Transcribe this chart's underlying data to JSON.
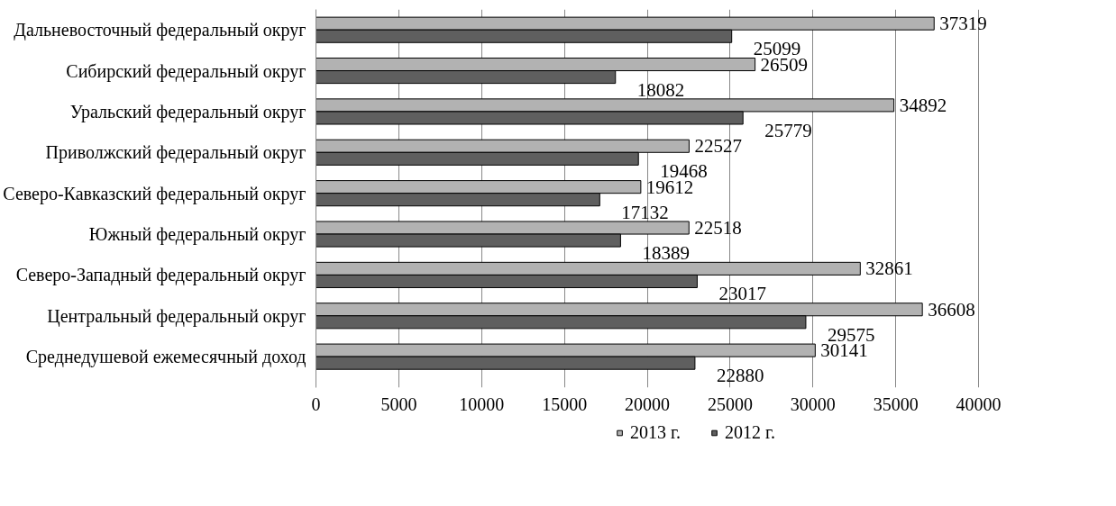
{
  "chart_data": {
    "type": "bar",
    "orientation": "horizontal",
    "categories": [
      "Дальневосточный федеральный округ",
      "Сибирский федеральный округ",
      "Уральский федеральный округ",
      "Приволжский федеральный округ",
      "Северо-Кавказский федеральный округ",
      "Южный федеральный округ",
      "Северо-Западный федеральный округ",
      "Центральный федеральный округ",
      "Среднедушевой ежемесячный доход"
    ],
    "series": [
      {
        "name": "2013 г.",
        "color": "#b2b2b2",
        "values": [
          37319,
          26509,
          34892,
          22527,
          19612,
          22518,
          32861,
          36608,
          30141
        ]
      },
      {
        "name": "2012 г.",
        "color": "#5f5f5f",
        "values": [
          25099,
          18082,
          25779,
          19468,
          17132,
          18389,
          23017,
          29575,
          22880
        ]
      }
    ],
    "xlim": [
      0,
      40000
    ],
    "xticks": [
      0,
      5000,
      10000,
      15000,
      20000,
      25000,
      30000,
      35000,
      40000
    ],
    "grid": "x",
    "legend": "bottom",
    "data_labels": true
  }
}
